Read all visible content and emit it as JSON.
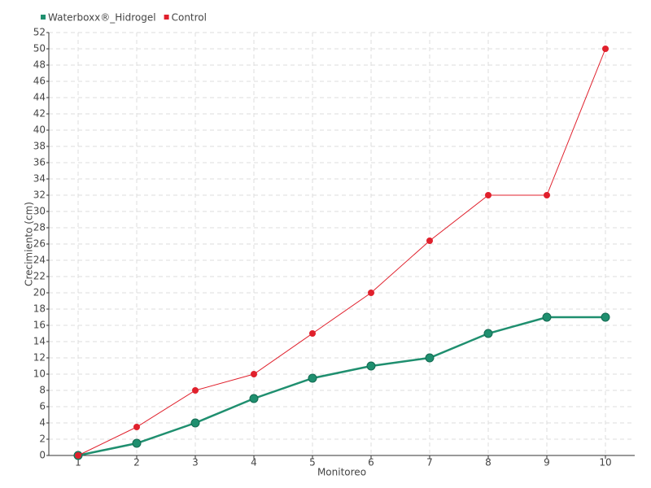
{
  "chart_data": {
    "type": "line",
    "x_label": "Monitoreo",
    "y_label": "Crecimiento (cm)",
    "categories": [
      "1",
      "2",
      "3",
      "4",
      "5",
      "6",
      "7",
      "8",
      "9",
      "10"
    ],
    "series": [
      {
        "name": "Waterboxx®_Hidrogel",
        "color": "#1f8f6f",
        "values": [
          0,
          1.5,
          4,
          7,
          9.5,
          11,
          12,
          15,
          17,
          17
        ]
      },
      {
        "name": "Control",
        "color": "#e0202c",
        "values": [
          0,
          3.5,
          8,
          10,
          15,
          20,
          26.4,
          32,
          32,
          50
        ]
      }
    ],
    "ylim": [
      0,
      52
    ],
    "yticks": [
      0,
      2,
      4,
      6,
      8,
      10,
      12,
      14,
      16,
      18,
      20,
      22,
      24,
      26,
      28,
      30,
      32,
      34,
      36,
      38,
      40,
      42,
      44,
      46,
      48,
      50,
      52
    ],
    "grid": true,
    "legend": "top-left"
  }
}
